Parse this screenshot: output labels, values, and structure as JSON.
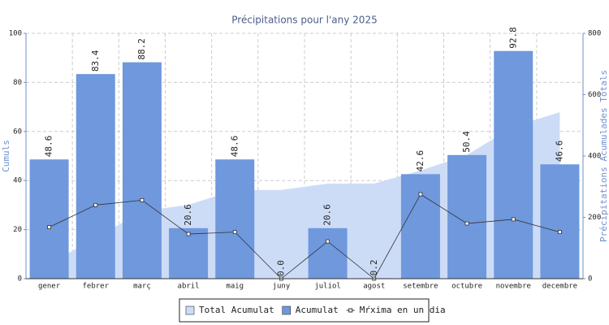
{
  "chart_data": {
    "type": "bar",
    "title": "Précipitations pour l'any 2025",
    "y_label": "Cumuls",
    "y2_label": "Précipitations Acumulades Totals",
    "categories": [
      "gener",
      "febrer",
      "març",
      "abril",
      "maig",
      "juny",
      "juliol",
      "agost",
      "setembre",
      "octubre",
      "novembre",
      "decembre"
    ],
    "ylim": [
      0,
      100
    ],
    "yticks": [
      0,
      20,
      40,
      60,
      80,
      100
    ],
    "y2lim": [
      0,
      800
    ],
    "y2ticks": [
      0,
      200,
      400,
      600,
      800
    ],
    "grid": true,
    "series": [
      {
        "name": "Total Acumulat",
        "type": "area",
        "axis": "y2",
        "color": "#cddcf6",
        "values": [
          48.6,
          132,
          220.2,
          240.8,
          289.4,
          289.4,
          310,
          310.2,
          352.8,
          403.2,
          496,
          542.6
        ]
      },
      {
        "name": "Acumulat",
        "type": "bar",
        "color": "#6f98dd",
        "values": [
          48.6,
          83.4,
          88.2,
          20.6,
          48.6,
          0,
          20.6,
          0.2,
          42.6,
          50.4,
          92.8,
          46.6
        ],
        "value_labels": [
          "48.6",
          "83.4",
          "88.2",
          "20.6",
          "48.6",
          "0.0",
          "20.6",
          "0.2",
          "42.6",
          "50.4",
          "92.8",
          "46.6"
        ]
      },
      {
        "name": "Mŕxima en un dia",
        "type": "line",
        "color": "#333333",
        "values": [
          21,
          30,
          32,
          18.2,
          19,
          0,
          15.2,
          0,
          34.4,
          22.5,
          24.2,
          19
        ]
      }
    ]
  }
}
